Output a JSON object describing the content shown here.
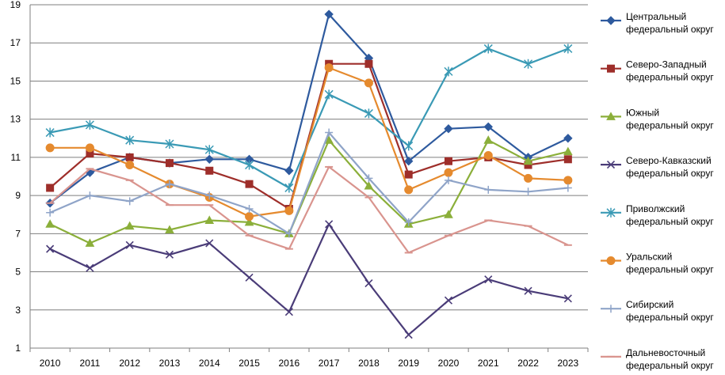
{
  "chart_data": {
    "type": "line",
    "title": "",
    "xlabel": "",
    "ylabel": "",
    "ylim": [
      1,
      19
    ],
    "yticks": [
      "1",
      "3",
      "5",
      "7",
      "9",
      "11",
      "13",
      "15",
      "17",
      "19"
    ],
    "categories": [
      "2010",
      "2011",
      "2012",
      "2013",
      "2014",
      "2015",
      "2016",
      "2017",
      "2018",
      "2019",
      "2020",
      "2021",
      "2022",
      "2023"
    ],
    "grid": "horizontal",
    "legend_position": "right",
    "series": [
      {
        "name": "Центральный федеральный округ",
        "legend_lines": [
          "Центральный",
          "федеральный округ"
        ],
        "color": "#2E5A9E",
        "marker": "diamond",
        "values": [
          8.6,
          10.2,
          11.0,
          10.7,
          10.9,
          10.9,
          10.3,
          18.5,
          16.2,
          10.8,
          12.5,
          12.6,
          11.0,
          12.0
        ]
      },
      {
        "name": "Северо-Западный федеральный округ",
        "legend_lines": [
          "Северо-Западный",
          "федеральный округ"
        ],
        "color": "#9E2E2A",
        "marker": "square",
        "values": [
          9.4,
          11.2,
          11.0,
          10.7,
          10.3,
          9.6,
          8.3,
          15.9,
          15.9,
          10.1,
          10.8,
          11.0,
          10.6,
          10.9
        ]
      },
      {
        "name": "Южный федеральный округ",
        "legend_lines": [
          "Южный",
          "федеральный округ"
        ],
        "color": "#8BAF3A",
        "marker": "triangle",
        "values": [
          7.5,
          6.5,
          7.4,
          7.2,
          7.7,
          7.6,
          7.0,
          11.9,
          9.5,
          7.5,
          8.0,
          11.9,
          10.8,
          11.3
        ]
      },
      {
        "name": "Северо-Кавказский федеральный округ",
        "legend_lines": [
          "Северо-Кавказский",
          "федеральный округ"
        ],
        "color": "#4A3C78",
        "marker": "x",
        "values": [
          6.2,
          5.2,
          6.4,
          5.9,
          6.5,
          4.7,
          2.9,
          7.5,
          4.4,
          1.7,
          3.5,
          4.6,
          4.0,
          3.6
        ]
      },
      {
        "name": "Приволжский федеральный округ",
        "legend_lines": [
          "Приволжский",
          "федеральный округ"
        ],
        "color": "#3A9AB5",
        "marker": "star",
        "values": [
          12.3,
          12.7,
          11.9,
          11.7,
          11.4,
          10.6,
          9.4,
          14.3,
          13.3,
          11.6,
          15.5,
          16.7,
          15.9,
          16.7
        ]
      },
      {
        "name": "Уральский федеральный округ",
        "legend_lines": [
          "Уральский",
          "федеральный округ"
        ],
        "color": "#E58A2E",
        "marker": "circle",
        "values": [
          11.5,
          11.5,
          10.6,
          9.6,
          8.9,
          7.9,
          8.2,
          15.7,
          14.9,
          9.3,
          10.2,
          11.1,
          9.9,
          9.8
        ]
      },
      {
        "name": "Сибирский федеральный округ",
        "legend_lines": [
          "Сибирский",
          "федеральный округ"
        ],
        "color": "#8FA4C8",
        "marker": "plus",
        "values": [
          8.1,
          9.0,
          8.7,
          9.6,
          9.0,
          8.3,
          7.0,
          12.3,
          9.9,
          7.6,
          9.8,
          9.3,
          9.2,
          9.4
        ]
      },
      {
        "name": "Дальневосточный федеральный округ",
        "legend_lines": [
          "Дальневосточный",
          "федеральный округ"
        ],
        "color": "#D9948E",
        "marker": "dash",
        "values": [
          8.6,
          10.4,
          9.8,
          8.5,
          8.5,
          6.9,
          6.2,
          10.5,
          8.9,
          6.0,
          6.9,
          7.7,
          7.4,
          6.4
        ]
      }
    ]
  }
}
